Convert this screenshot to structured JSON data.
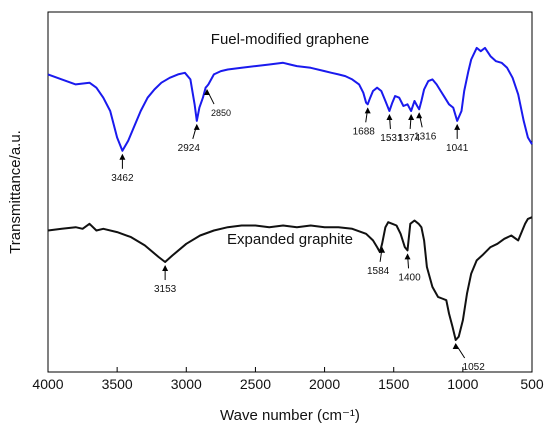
{
  "chart_data": {
    "type": "line",
    "title": "",
    "xlabel": "Wave number (cm⁻¹)",
    "ylabel": "Transmittance/a.u.",
    "xlim": [
      4000,
      500
    ],
    "x_reversed": true,
    "y_units": "arbitrary",
    "ylim": [
      0,
      100
    ],
    "grid": false,
    "legend": "none",
    "x_ticks": [
      4000,
      3500,
      3000,
      2500,
      2000,
      1500,
      1000,
      500
    ],
    "series": [
      {
        "name": "Fuel-modified graphene",
        "color": "#1a1aee",
        "points": [
          [
            4000,
            83
          ],
          [
            3900,
            81.5
          ],
          [
            3800,
            80
          ],
          [
            3700,
            80.5
          ],
          [
            3650,
            79
          ],
          [
            3600,
            76
          ],
          [
            3550,
            72
          ],
          [
            3500,
            64
          ],
          [
            3462,
            60
          ],
          [
            3420,
            63
          ],
          [
            3380,
            67
          ],
          [
            3330,
            72
          ],
          [
            3280,
            76
          ],
          [
            3230,
            78.5
          ],
          [
            3180,
            80.5
          ],
          [
            3120,
            82
          ],
          [
            3060,
            83
          ],
          [
            3010,
            83.5
          ],
          [
            2970,
            81.5
          ],
          [
            2940,
            74
          ],
          [
            2924,
            69
          ],
          [
            2905,
            73
          ],
          [
            2880,
            76
          ],
          [
            2860,
            79
          ],
          [
            2850,
            79.5
          ],
          [
            2840,
            80
          ],
          [
            2800,
            83
          ],
          [
            2750,
            84
          ],
          [
            2700,
            84.5
          ],
          [
            2600,
            85
          ],
          [
            2500,
            85.5
          ],
          [
            2400,
            86
          ],
          [
            2300,
            86.5
          ],
          [
            2250,
            86
          ],
          [
            2200,
            85.5
          ],
          [
            2100,
            85
          ],
          [
            2000,
            84
          ],
          [
            1950,
            83.5
          ],
          [
            1900,
            83
          ],
          [
            1850,
            82.5
          ],
          [
            1800,
            81.5
          ],
          [
            1750,
            80
          ],
          [
            1720,
            77.5
          ],
          [
            1700,
            74.5
          ],
          [
            1688,
            74
          ],
          [
            1670,
            76
          ],
          [
            1650,
            78
          ],
          [
            1620,
            79
          ],
          [
            1590,
            78
          ],
          [
            1560,
            75
          ],
          [
            1531,
            72
          ],
          [
            1510,
            74.5
          ],
          [
            1490,
            76.5
          ],
          [
            1460,
            76
          ],
          [
            1430,
            73.5
          ],
          [
            1400,
            74
          ],
          [
            1374,
            72
          ],
          [
            1350,
            75
          ],
          [
            1330,
            73.5
          ],
          [
            1316,
            72.5
          ],
          [
            1300,
            75
          ],
          [
            1280,
            78.5
          ],
          [
            1250,
            81
          ],
          [
            1220,
            81.5
          ],
          [
            1190,
            80
          ],
          [
            1160,
            78
          ],
          [
            1130,
            76
          ],
          [
            1100,
            74
          ],
          [
            1070,
            73
          ],
          [
            1041,
            69
          ],
          [
            1010,
            72
          ],
          [
            990,
            78
          ],
          [
            960,
            84
          ],
          [
            940,
            87.5
          ],
          [
            900,
            91
          ],
          [
            870,
            90
          ],
          [
            840,
            91
          ],
          [
            800,
            88.5
          ],
          [
            760,
            87
          ],
          [
            720,
            86.5
          ],
          [
            680,
            85
          ],
          [
            640,
            82
          ],
          [
            600,
            77
          ],
          [
            560,
            69
          ],
          [
            530,
            64
          ],
          [
            500,
            62
          ]
        ],
        "label": "Fuel-modified graphene",
        "annotations": [
          {
            "x": 3462,
            "label": "3462"
          },
          {
            "x": 2924,
            "label": "2924"
          },
          {
            "x": 2850,
            "label": "2850"
          },
          {
            "x": 1688,
            "label": "1688"
          },
          {
            "x": 1531,
            "label": "1531"
          },
          {
            "x": 1374,
            "label": "1374"
          },
          {
            "x": 1316,
            "label": "1316"
          },
          {
            "x": 1041,
            "label": "1041"
          }
        ]
      },
      {
        "name": "Expanded graphite",
        "color": "#111111",
        "points": [
          [
            4000,
            36
          ],
          [
            3900,
            36.5
          ],
          [
            3800,
            37
          ],
          [
            3750,
            36.5
          ],
          [
            3700,
            38
          ],
          [
            3650,
            36
          ],
          [
            3600,
            36.5
          ],
          [
            3500,
            35.5
          ],
          [
            3400,
            34
          ],
          [
            3300,
            31.5
          ],
          [
            3200,
            28
          ],
          [
            3153,
            26.5
          ],
          [
            3100,
            28.5
          ],
          [
            3000,
            32
          ],
          [
            2900,
            34.5
          ],
          [
            2800,
            36
          ],
          [
            2700,
            37
          ],
          [
            2600,
            37.5
          ],
          [
            2500,
            37.5
          ],
          [
            2400,
            37
          ],
          [
            2300,
            37.5
          ],
          [
            2200,
            37
          ],
          [
            2100,
            37.5
          ],
          [
            2000,
            37
          ],
          [
            1900,
            37
          ],
          [
            1800,
            36.5
          ],
          [
            1700,
            35
          ],
          [
            1650,
            33
          ],
          [
            1620,
            31
          ],
          [
            1600,
            29.5
          ],
          [
            1584,
            32
          ],
          [
            1560,
            37
          ],
          [
            1540,
            38.5
          ],
          [
            1510,
            38
          ],
          [
            1480,
            37.5
          ],
          [
            1450,
            35
          ],
          [
            1420,
            31
          ],
          [
            1400,
            30
          ],
          [
            1380,
            38
          ],
          [
            1350,
            39
          ],
          [
            1320,
            38
          ],
          [
            1300,
            37
          ],
          [
            1280,
            33
          ],
          [
            1260,
            25
          ],
          [
            1220,
            19
          ],
          [
            1180,
            16
          ],
          [
            1150,
            15.5
          ],
          [
            1120,
            15
          ],
          [
            1100,
            11
          ],
          [
            1075,
            7
          ],
          [
            1052,
            3
          ],
          [
            1030,
            4
          ],
          [
            1000,
            9
          ],
          [
            970,
            17
          ],
          [
            940,
            23
          ],
          [
            900,
            27
          ],
          [
            860,
            28.5
          ],
          [
            800,
            31
          ],
          [
            750,
            32
          ],
          [
            700,
            33.5
          ],
          [
            650,
            34.5
          ],
          [
            600,
            33
          ],
          [
            570,
            36
          ],
          [
            550,
            38
          ],
          [
            530,
            39.5
          ],
          [
            500,
            40
          ]
        ],
        "label": "Expanded graphite",
        "annotations": [
          {
            "x": 3153,
            "label": "3153"
          },
          {
            "x": 1584,
            "label": "1584"
          },
          {
            "x": 1400,
            "label": "1400"
          },
          {
            "x": 1052,
            "label": "1052"
          }
        ]
      }
    ]
  }
}
